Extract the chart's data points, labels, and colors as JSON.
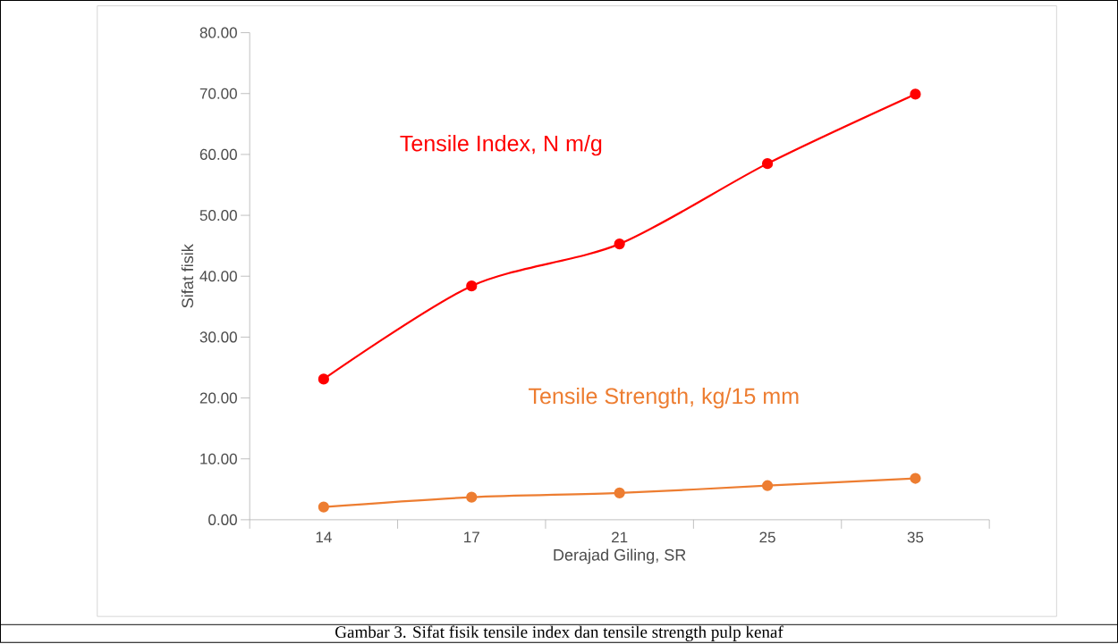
{
  "chart_data": {
    "type": "line",
    "xlabel": "Derajad Giling, SR",
    "ylabel": "Sifat fisik",
    "categories": [
      "14",
      "17",
      "21",
      "25",
      "35"
    ],
    "series": [
      {
        "name": "Tensile Index, N m/g",
        "color": "#ff0000",
        "values": [
          23.1,
          38.4,
          45.3,
          58.5,
          69.9
        ]
      },
      {
        "name": "Tensile Strength, kg/15 mm",
        "color": "#ed7d31",
        "values": [
          2.1,
          3.7,
          4.4,
          5.6,
          6.8
        ]
      }
    ],
    "ylim": [
      0,
      80
    ],
    "yticks": [
      {
        "value": 0,
        "label": "0.00"
      },
      {
        "value": 10,
        "label": "10.00"
      },
      {
        "value": 20,
        "label": "20.00"
      },
      {
        "value": 30,
        "label": "30.00"
      },
      {
        "value": 40,
        "label": "40.00"
      },
      {
        "value": 50,
        "label": "50.00"
      },
      {
        "value": 60,
        "label": "60.00"
      },
      {
        "value": 70,
        "label": "70.00"
      },
      {
        "value": 80,
        "label": "80.00"
      }
    ],
    "marker": "circle",
    "grid": false,
    "annotations": [
      "Gambar 3. Sifat fisik tensile index dan tensile strength pulp kenaf"
    ]
  }
}
